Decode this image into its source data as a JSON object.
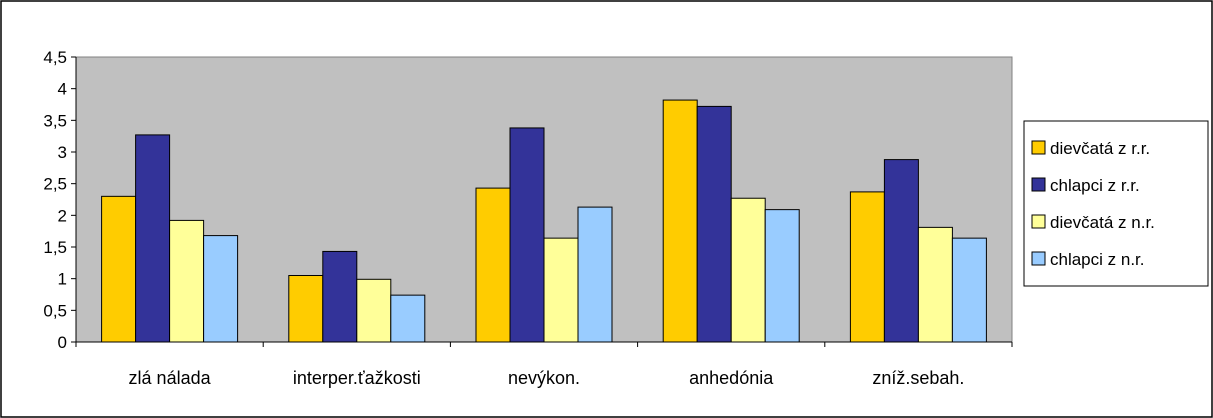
{
  "chart_data": {
    "type": "bar",
    "categories": [
      "zlá nálada",
      "interper.ťažkosti",
      "nevýkon.",
      "anhedónia",
      "zníž.sebah."
    ],
    "series": [
      {
        "name": "dievčatá z r.r.",
        "color": "#FFCC00",
        "values": [
          2.3,
          1.05,
          2.43,
          3.82,
          2.37
        ]
      },
      {
        "name": "chlapci z r.r.",
        "color": "#333399",
        "values": [
          3.27,
          1.43,
          3.38,
          3.72,
          2.88
        ]
      },
      {
        "name": "dievčatá z n.r.",
        "color": "#FFFF99",
        "values": [
          1.92,
          0.99,
          1.64,
          2.27,
          1.81
        ]
      },
      {
        "name": "chlapci z n.r.",
        "color": "#99CCFF",
        "values": [
          1.68,
          0.74,
          2.13,
          2.09,
          1.64
        ]
      }
    ],
    "ylim": [
      0,
      4.5
    ],
    "yticks": [
      "0",
      "0,5",
      "1",
      "1,5",
      "2",
      "2,5",
      "3",
      "3,5",
      "4",
      "4,5"
    ],
    "grid": false,
    "plot_background": "#C0C0C0",
    "legend_position": "right"
  }
}
